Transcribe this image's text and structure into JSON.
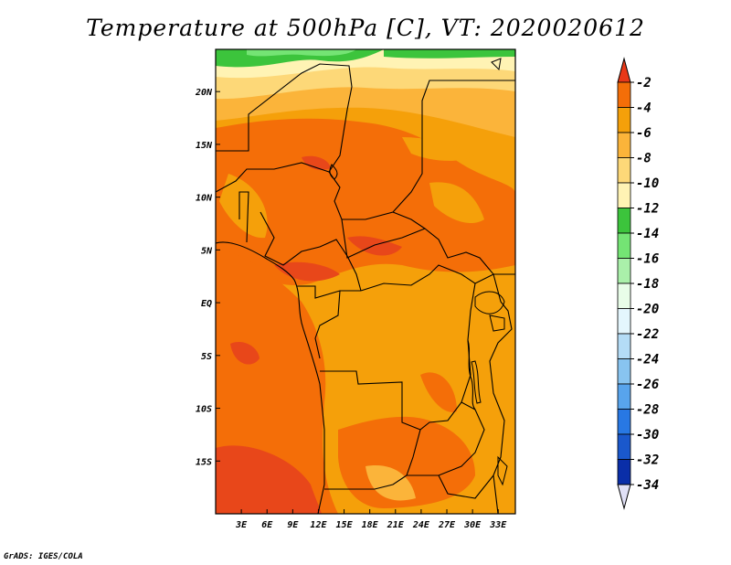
{
  "title": "Temperature at 500hPa [C], VT: 2020020612",
  "credit": "GrADS: IGES/COLA",
  "map": {
    "lon_range": [
      0,
      35
    ],
    "lat_range": [
      -20,
      24
    ],
    "lon_ticks": [
      {
        "value": 3,
        "label": "3E"
      },
      {
        "value": 6,
        "label": "6E"
      },
      {
        "value": 9,
        "label": "9E"
      },
      {
        "value": 12,
        "label": "12E"
      },
      {
        "value": 15,
        "label": "15E"
      },
      {
        "value": 18,
        "label": "18E"
      },
      {
        "value": 21,
        "label": "21E"
      },
      {
        "value": 24,
        "label": "24E"
      },
      {
        "value": 27,
        "label": "27E"
      },
      {
        "value": 30,
        "label": "30E"
      },
      {
        "value": 33,
        "label": "33E"
      }
    ],
    "lat_ticks": [
      {
        "value": 20,
        "label": "20N"
      },
      {
        "value": 15,
        "label": "15N"
      },
      {
        "value": 10,
        "label": "10N"
      },
      {
        "value": 5,
        "label": "5N"
      },
      {
        "value": 0,
        "label": "EQ"
      },
      {
        "value": -5,
        "label": "5S"
      },
      {
        "value": -10,
        "label": "10S"
      },
      {
        "value": -15,
        "label": "15S"
      }
    ]
  },
  "colorbar": {
    "levels": [
      {
        "label": "-2",
        "color": "#e8471a"
      },
      {
        "label": "-4",
        "color": "#f46e08"
      },
      {
        "label": "-6",
        "color": "#f5a00a"
      },
      {
        "label": "-8",
        "color": "#fbb43a"
      },
      {
        "label": "-10",
        "color": "#fdd878"
      },
      {
        "label": "-12",
        "color": "#fff3b4"
      },
      {
        "label": "-14",
        "color": "#3cc43c"
      },
      {
        "label": "-16",
        "color": "#74e474"
      },
      {
        "label": "-18",
        "color": "#aaf0aa"
      },
      {
        "label": "-20",
        "color": "#e8fde8"
      },
      {
        "label": "-22",
        "color": "#e4f6fd"
      },
      {
        "label": "-24",
        "color": "#b4dcf6"
      },
      {
        "label": "-26",
        "color": "#88c4f0"
      },
      {
        "label": "-28",
        "color": "#58a4ec"
      },
      {
        "label": "-30",
        "color": "#2878e4"
      },
      {
        "label": "-32",
        "color": "#1a58cc"
      },
      {
        "label": "-34",
        "color": "#0a2ea8"
      }
    ],
    "top_color": "#e83818",
    "bottom_color": "#e0e0f6",
    "below_min_color": "#0a1a6a"
  }
}
